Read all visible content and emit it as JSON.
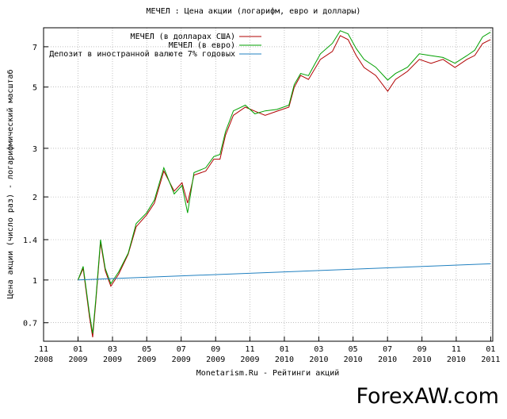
{
  "chart_data": {
    "type": "line",
    "title": "МЕЧЕЛ : Цена акции (логарифм, евро и доллары)",
    "y_label": "Цена акции (число раз) - логарифмический масштаб",
    "x_label": "Monetarism.Ru - Рейтинги акций",
    "watermark": "ForexAW.com",
    "log_y": true,
    "grid": true,
    "legend": "top-left",
    "xlim": [
      2008.833,
      2011.01
    ],
    "ylim": [
      0.6,
      8.2
    ],
    "yticks": [
      0.7,
      1,
      1.4,
      2,
      3,
      5,
      7
    ],
    "xticks": [
      {
        "value": 2008.833,
        "label": "11\n2008"
      },
      {
        "value": 2009.0,
        "label": "01\n2009"
      },
      {
        "value": 2009.167,
        "label": "03\n2009"
      },
      {
        "value": 2009.333,
        "label": "05\n2009"
      },
      {
        "value": 2009.5,
        "label": "07\n2009"
      },
      {
        "value": 2009.667,
        "label": "09\n2009"
      },
      {
        "value": 2009.833,
        "label": "11\n2009"
      },
      {
        "value": 2010.0,
        "label": "01\n2010"
      },
      {
        "value": 2010.167,
        "label": "03\n2010"
      },
      {
        "value": 2010.333,
        "label": "05\n2010"
      },
      {
        "value": 2010.5,
        "label": "07\n2010"
      },
      {
        "value": 2010.667,
        "label": "09\n2010"
      },
      {
        "value": 2010.833,
        "label": "11\n2010"
      },
      {
        "value": 2011.0,
        "label": "01\n2011"
      }
    ],
    "series": [
      {
        "name": "МЕЧЕЛ (в долларах США)",
        "color": "#b00000",
        "x": [
          2009.0,
          2009.025,
          2009.056,
          2009.071,
          2009.086,
          2009.109,
          2009.132,
          2009.159,
          2009.197,
          2009.243,
          2009.282,
          2009.332,
          2009.37,
          2009.416,
          2009.466,
          2009.504,
          2009.531,
          2009.562,
          2009.619,
          2009.658,
          2009.688,
          2009.715,
          2009.753,
          2009.811,
          2009.857,
          2009.907,
          2009.964,
          2010.022,
          2010.048,
          2010.079,
          2010.117,
          2010.175,
          2010.233,
          2010.271,
          2010.309,
          2010.348,
          2010.386,
          2010.443,
          2010.501,
          2010.539,
          2010.597,
          2010.654,
          2010.711,
          2010.769,
          2010.827,
          2010.885,
          2010.923,
          2010.961,
          2010.999
        ],
        "values": [
          1.0,
          1.1,
          0.73,
          0.62,
          0.83,
          1.37,
          1.08,
          0.95,
          1.05,
          1.24,
          1.56,
          1.72,
          1.9,
          2.48,
          2.1,
          2.25,
          1.9,
          2.4,
          2.48,
          2.74,
          2.74,
          3.35,
          3.95,
          4.23,
          4.09,
          3.95,
          4.09,
          4.23,
          4.99,
          5.51,
          5.33,
          6.3,
          6.73,
          7.68,
          7.43,
          6.51,
          5.89,
          5.51,
          4.83,
          5.33,
          5.7,
          6.3,
          6.09,
          6.3,
          5.89,
          6.3,
          6.51,
          7.19,
          7.43
        ]
      },
      {
        "name": "МЕЧЕЛ (в евро)",
        "color": "#00a000",
        "x": [
          2009.0,
          2009.025,
          2009.056,
          2009.071,
          2009.086,
          2009.109,
          2009.132,
          2009.159,
          2009.197,
          2009.243,
          2009.282,
          2009.332,
          2009.37,
          2009.416,
          2009.466,
          2009.504,
          2009.531,
          2009.562,
          2009.619,
          2009.658,
          2009.688,
          2009.715,
          2009.753,
          2009.811,
          2009.857,
          2009.907,
          2009.964,
          2010.022,
          2010.048,
          2010.079,
          2010.117,
          2010.175,
          2010.233,
          2010.271,
          2010.309,
          2010.348,
          2010.386,
          2010.443,
          2010.501,
          2010.539,
          2010.597,
          2010.654,
          2010.711,
          2010.769,
          2010.827,
          2010.885,
          2010.923,
          2010.961,
          2010.999
        ],
        "values": [
          1.0,
          1.12,
          0.75,
          0.64,
          0.85,
          1.4,
          1.1,
          0.97,
          1.07,
          1.25,
          1.6,
          1.75,
          1.95,
          2.55,
          2.05,
          2.2,
          1.75,
          2.45,
          2.55,
          2.8,
          2.85,
          3.45,
          4.1,
          4.3,
          4.0,
          4.1,
          4.15,
          4.3,
          5.1,
          5.6,
          5.5,
          6.6,
          7.2,
          8.0,
          7.8,
          6.9,
          6.3,
          5.9,
          5.3,
          5.6,
          5.9,
          6.6,
          6.5,
          6.4,
          6.1,
          6.5,
          6.8,
          7.6,
          7.9
        ]
      },
      {
        "name": "Депозит в иностранной валюте 7% годовых",
        "color": "#2080c0",
        "x": [
          2009.0,
          2011.0
        ],
        "values": [
          1.0,
          1.145
        ]
      }
    ]
  }
}
